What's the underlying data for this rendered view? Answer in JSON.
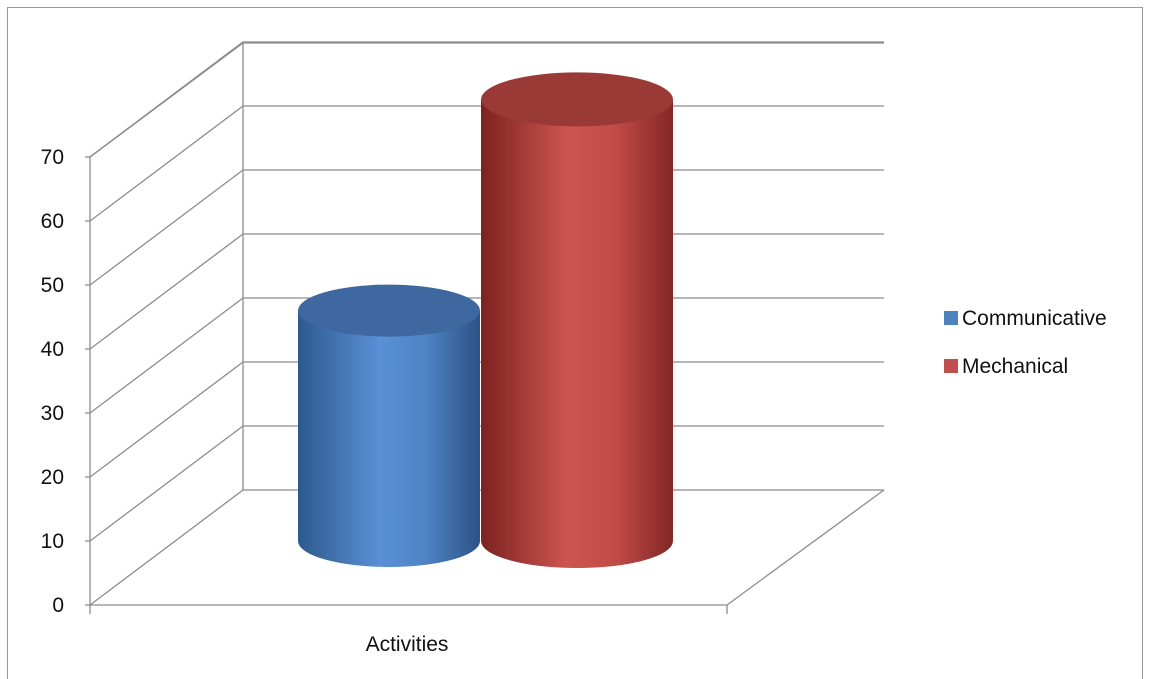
{
  "chart_data": {
    "type": "bar",
    "subtype": "3d-cylinder",
    "categories": [
      "Activities"
    ],
    "series": [
      {
        "name": "Communicative",
        "values": [
          36
        ],
        "color": "#4f81bd"
      },
      {
        "name": "Mechanical",
        "values": [
          69
        ],
        "color": "#c0504d"
      }
    ],
    "ylim": [
      0,
      70
    ],
    "yticks": [
      "0",
      "10",
      "20",
      "30",
      "40",
      "50",
      "60",
      "70"
    ],
    "xlabel": "",
    "ylabel": "",
    "title": "",
    "grid": true,
    "legend": "right"
  }
}
